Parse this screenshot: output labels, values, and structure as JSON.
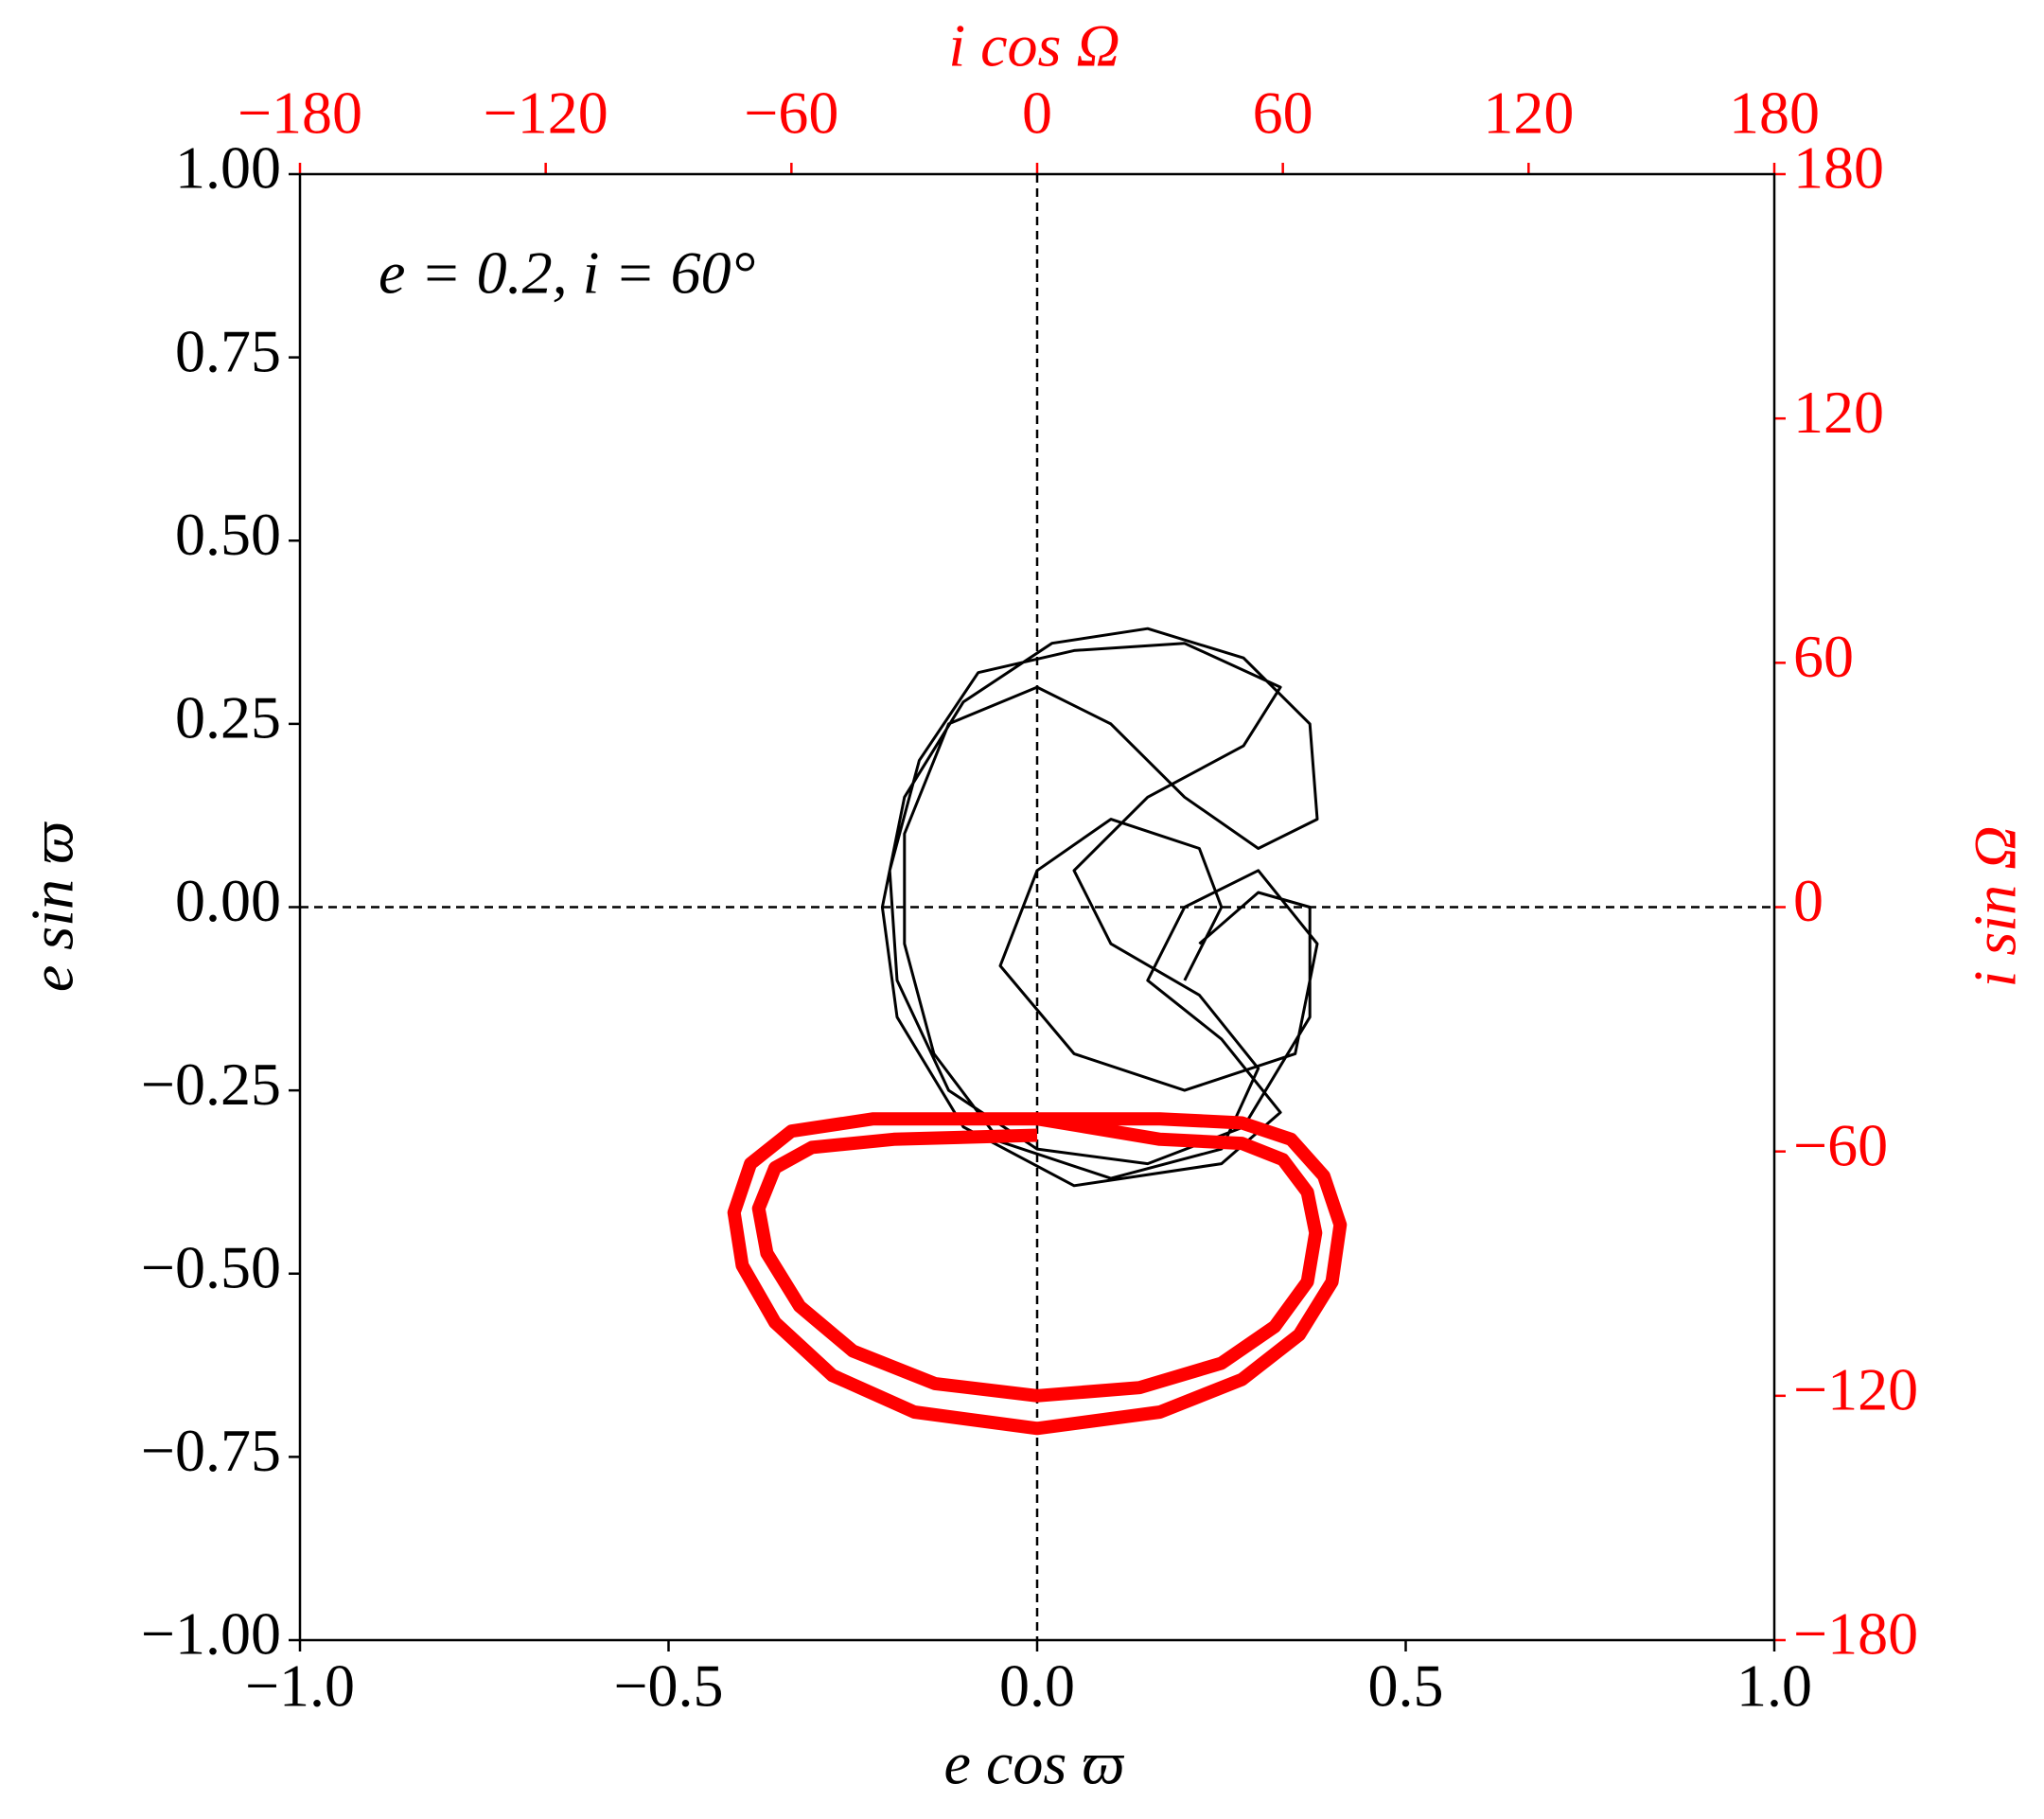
{
  "chart_data": {
    "type": "line",
    "annotation": "e = 0.2,  i = 60°",
    "xlabel": "e cos ϖ",
    "ylabel": "e sin ϖ",
    "x2label": "i cos Ω",
    "y2label": "i sin Ω",
    "axis_color": "#000000",
    "axis2_color": "#ff0000",
    "zero_lines": true,
    "xlim": [
      -1,
      1
    ],
    "xticks": [
      {
        "value": -1,
        "label": "−1.0"
      },
      {
        "value": -0.5,
        "label": "−0.5"
      },
      {
        "value": 0,
        "label": "0.0"
      },
      {
        "value": 0.5,
        "label": "0.5"
      },
      {
        "value": 1,
        "label": "1.0"
      }
    ],
    "ylim": [
      -1,
      1
    ],
    "yticks": [
      {
        "value": -1,
        "label": "−1.00"
      },
      {
        "value": -0.75,
        "label": "−0.75"
      },
      {
        "value": -0.5,
        "label": "−0.50"
      },
      {
        "value": -0.25,
        "label": "−0.25"
      },
      {
        "value": 0,
        "label": "0.00"
      },
      {
        "value": 0.25,
        "label": "0.25"
      },
      {
        "value": 0.5,
        "label": "0.50"
      },
      {
        "value": 0.75,
        "label": "0.75"
      },
      {
        "value": 1,
        "label": "1.00"
      }
    ],
    "x2lim": [
      -180,
      180
    ],
    "x2ticks": [
      {
        "value": -180,
        "label": "−180"
      },
      {
        "value": -120,
        "label": "−120"
      },
      {
        "value": -60,
        "label": "−60"
      },
      0,
      60,
      120,
      180
    ],
    "y2lim": [
      -180,
      180
    ],
    "y2ticks": [
      {
        "value": -180,
        "label": "−180"
      },
      {
        "value": -120,
        "label": "−120"
      },
      {
        "value": -60,
        "label": "−60"
      },
      0,
      60,
      120,
      180
    ],
    "series": [
      {
        "color": "#000000",
        "x": [
          0.2,
          0.25,
          0.22,
          0.1,
          0.0,
          -0.05,
          0.05,
          0.2,
          0.35,
          0.38,
          0.3,
          0.2,
          0.15,
          0.25,
          0.33,
          0.25,
          0.05,
          -0.1,
          -0.19,
          -0.21,
          -0.18,
          -0.1,
          0.02,
          0.15,
          0.28,
          0.37,
          0.38,
          0.3,
          0.2,
          0.1,
          0.0,
          -0.12,
          -0.18,
          -0.18,
          -0.14,
          -0.05,
          0.1,
          0.25,
          0.3,
          0.22,
          0.1,
          0.05,
          0.15,
          0.28,
          0.33,
          0.2,
          0.05,
          -0.08,
          -0.16,
          -0.2,
          -0.19,
          -0.12,
          0.0,
          0.15,
          0.28,
          0.37,
          0.37,
          0.3,
          0.22
        ],
        "values": [
          -0.1,
          0.0,
          0.08,
          0.12,
          0.05,
          -0.08,
          -0.2,
          -0.25,
          -0.2,
          -0.05,
          0.05,
          0.0,
          -0.1,
          -0.18,
          -0.28,
          -0.35,
          -0.38,
          -0.3,
          -0.15,
          0.0,
          0.15,
          0.28,
          0.36,
          0.38,
          0.34,
          0.25,
          0.12,
          0.08,
          0.15,
          0.25,
          0.3,
          0.25,
          0.1,
          -0.05,
          -0.2,
          -0.32,
          -0.37,
          -0.33,
          -0.22,
          -0.12,
          -0.05,
          0.05,
          0.15,
          0.22,
          0.3,
          0.36,
          0.35,
          0.32,
          0.2,
          0.05,
          -0.1,
          -0.25,
          -0.33,
          -0.35,
          -0.3,
          -0.15,
          0.0,
          0.02,
          -0.05
        ]
      },
      {
        "color": "#ff0000",
        "axis": "y2",
        "x": [
          0,
          30,
          50,
          62,
          70,
          74,
          72,
          64,
          50,
          30,
          0,
          -30,
          -50,
          -64,
          -72,
          -74,
          -70,
          -60,
          -40,
          0,
          30,
          50,
          60,
          66,
          68,
          66,
          58,
          45,
          25,
          0,
          -25,
          -45,
          -58,
          -66,
          -68,
          -64,
          -55,
          -35,
          0
        ],
        "values": [
          -52,
          -52,
          -53,
          -57,
          -66,
          -78,
          -92,
          -105,
          -116,
          -124,
          -128,
          -124,
          -115,
          -102,
          -88,
          -75,
          -63,
          -55,
          -52,
          -52,
          -57,
          -58,
          -62,
          -70,
          -80,
          -92,
          -103,
          -112,
          -118,
          -120,
          -117,
          -109,
          -98,
          -85,
          -74,
          -64,
          -59,
          -57,
          -56
        ]
      }
    ]
  }
}
